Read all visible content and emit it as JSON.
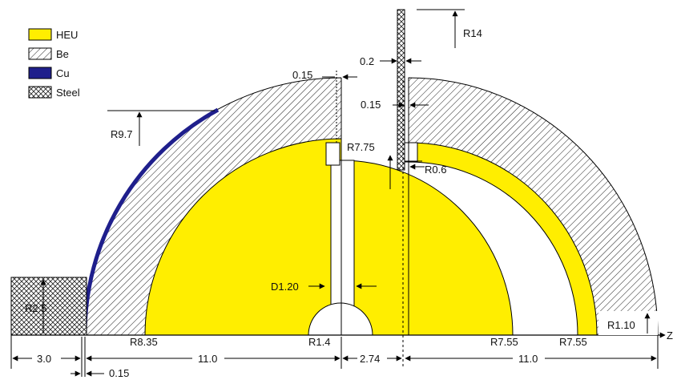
{
  "legend": {
    "items": [
      {
        "label": "HEU",
        "color": "#ffee00"
      },
      {
        "label": "Be",
        "pattern": "diagonal-hatch"
      },
      {
        "label": "Cu",
        "color": "#1f1f8c"
      },
      {
        "label": "Steel",
        "pattern": "cross-hatch"
      }
    ]
  },
  "labels": {
    "r14": "R14",
    "d02": "0.2",
    "d015_top": "0.15",
    "d015_mid": "0.15",
    "r97": "R9.7",
    "r775": "R7.75",
    "r06": "R0.6",
    "d120": "D1.20",
    "r25": "R2.5",
    "r110": "R1.10",
    "r835": "R8.35",
    "r14small": "R1.4",
    "r755a": "R7.55",
    "r755b": "R7.55",
    "z": "Z",
    "d30": "3.0",
    "d015_bottom": "0.15",
    "d110_left": "11.0",
    "d274": "2.74",
    "d110_right": "11.0"
  }
}
